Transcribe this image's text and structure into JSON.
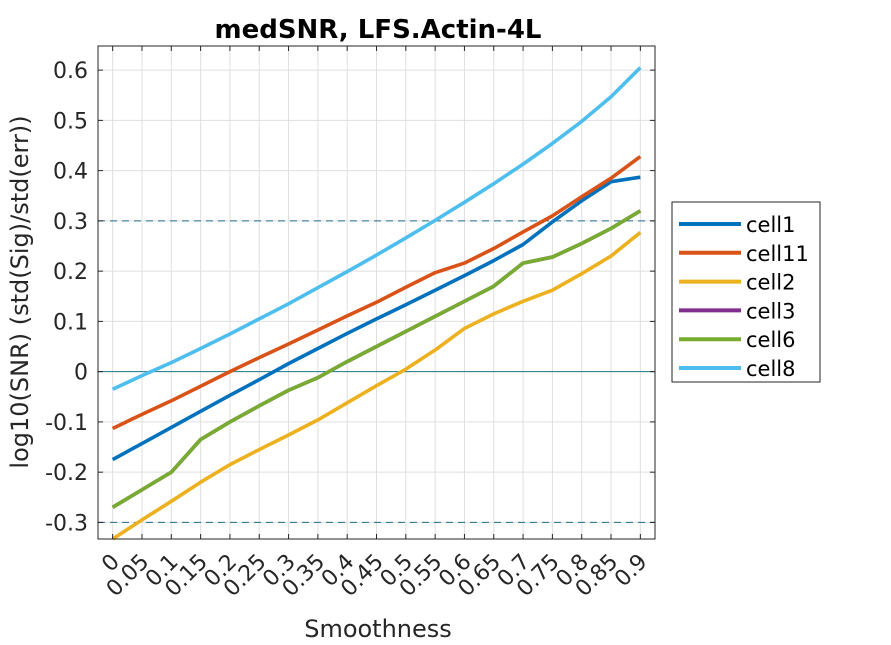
{
  "chart_data": {
    "type": "line",
    "title": "medSNR, LFS.Actin-4L",
    "xlabel": "Smoothness",
    "ylabel": "log10(SNR) (std(Sig)/std(err))",
    "x": [
      0,
      0.05,
      0.1,
      0.15,
      0.2,
      0.25,
      0.3,
      0.35,
      0.4,
      0.45,
      0.5,
      0.55,
      0.6,
      0.65,
      0.7,
      0.75,
      0.8,
      0.85,
      0.9
    ],
    "x_tick_labels": [
      "0",
      "0.05",
      "0.1",
      "0.15",
      "0.2",
      "0.25",
      "0.3",
      "0.35",
      "0.4",
      "0.45",
      "0.5",
      "0.55",
      "0.6",
      "0.65",
      "0.7",
      "0.75",
      "0.8",
      "0.85",
      "0.9"
    ],
    "y_ticks": [
      -0.3,
      -0.2,
      -0.1,
      0,
      0.1,
      0.2,
      0.3,
      0.4,
      0.5,
      0.6
    ],
    "y_tick_labels": [
      "-0.3",
      "-0.2",
      "-0.1",
      "0",
      "0.1",
      "0.2",
      "0.3",
      "0.4",
      "0.5",
      "0.6"
    ],
    "xlim": [
      -0.025,
      0.925
    ],
    "ylim": [
      -0.333,
      0.648
    ],
    "grid": true,
    "legend_position": "outside-right",
    "reference_lines": [
      {
        "y": 0.3,
        "style": "dashed",
        "color": "#1f6e8c"
      },
      {
        "y": 0,
        "style": "solid",
        "color": "#1f7a8c"
      },
      {
        "y": -0.3,
        "style": "dashed",
        "color": "#1f6e8c"
      }
    ],
    "series": [
      {
        "name": "cell1",
        "color": "#0072BD",
        "values": [
          -0.175,
          -0.143,
          -0.111,
          -0.079,
          -0.047,
          -0.016,
          0.016,
          0.046,
          0.076,
          0.105,
          0.133,
          0.162,
          0.191,
          0.221,
          0.253,
          0.298,
          0.34,
          0.378,
          0.387
        ]
      },
      {
        "name": "cell11",
        "color": "#D95319",
        "values": [
          -0.113,
          -0.085,
          -0.058,
          -0.029,
          0.0,
          0.028,
          0.055,
          0.083,
          0.111,
          0.138,
          0.168,
          0.197,
          0.216,
          0.245,
          0.278,
          0.31,
          0.348,
          0.385,
          0.428
        ]
      },
      {
        "name": "cell2",
        "color": "#EDB120",
        "values": [
          -0.333,
          -0.295,
          -0.258,
          -0.22,
          -0.185,
          -0.155,
          -0.126,
          -0.096,
          -0.062,
          -0.028,
          0.005,
          0.043,
          0.086,
          0.115,
          0.14,
          0.162,
          0.195,
          0.23,
          0.277
        ]
      },
      {
        "name": "cell3",
        "color": "#7E2F8E",
        "values": [
          -0.27,
          -0.235,
          -0.2,
          -0.135,
          -0.1,
          -0.068,
          -0.037,
          -0.012,
          0.02,
          0.05,
          0.08,
          0.11,
          0.14,
          0.17,
          0.216,
          0.228,
          0.255,
          0.285,
          0.32
        ]
      },
      {
        "name": "cell6",
        "color": "#77AC30",
        "values": [
          -0.27,
          -0.235,
          -0.2,
          -0.135,
          -0.1,
          -0.068,
          -0.037,
          -0.012,
          0.02,
          0.05,
          0.08,
          0.11,
          0.14,
          0.17,
          0.216,
          0.228,
          0.255,
          0.285,
          0.32
        ]
      },
      {
        "name": "cell8",
        "color": "#4DBEEE",
        "values": [
          -0.035,
          -0.008,
          0.018,
          0.046,
          0.075,
          0.105,
          0.135,
          0.167,
          0.199,
          0.232,
          0.266,
          0.301,
          0.337,
          0.374,
          0.413,
          0.454,
          0.498,
          0.547,
          0.605
        ]
      }
    ]
  }
}
